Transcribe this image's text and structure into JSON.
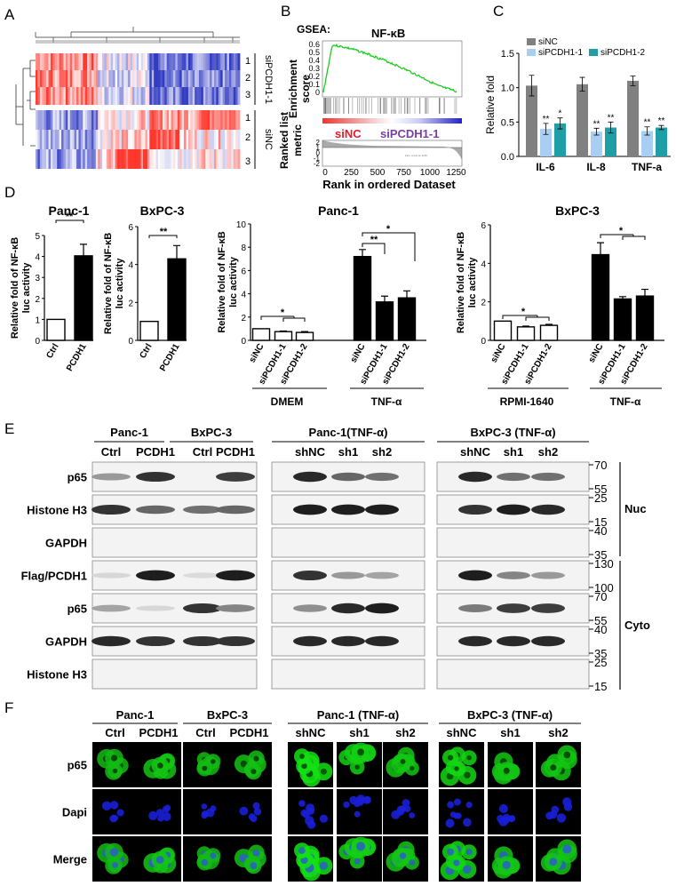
{
  "panels": {
    "A": "A",
    "B": "B",
    "C": "C",
    "D": "D",
    "E": "E",
    "F": "F"
  },
  "panelA": {
    "group_labels": [
      "siPCDH1-1",
      "siNC"
    ],
    "row_labels": [
      "1",
      "2",
      "3",
      "1",
      "2",
      "3"
    ]
  },
  "panelB": {
    "prefix": "GSEA:",
    "title": "NF-κB",
    "es_label_1": "Enrichment",
    "es_label_2": "score",
    "rl_label_1": "Ranked list",
    "rl_label_2": "metric",
    "xlabel": "Rank in ordered Dataset",
    "es_ticks": [
      "0.6",
      "0.5",
      "0.4",
      "0.3",
      "0.2",
      "0.1",
      "0"
    ],
    "rl_ticks": [
      "2",
      "1",
      "0",
      "-1",
      "-2"
    ],
    "x_ticks": [
      "0",
      "250",
      "500",
      "750",
      "1000",
      "1250"
    ],
    "bar_left": "siNC",
    "bar_right": "siPCDH1-1",
    "zero_note": "Zero cross at 1139"
  },
  "chart_data": [
    {
      "id": "C",
      "type": "bar",
      "title": "",
      "xlabel": "",
      "ylabel": "Relative fold",
      "ylim": [
        0,
        1.5
      ],
      "yticks": [
        "0.0",
        "0.5",
        "1.0",
        "1.5"
      ],
      "categories": [
        "IL-6",
        "IL-8",
        "TNF-a"
      ],
      "series": [
        {
          "name": "siNC",
          "values": [
            1.03,
            1.05,
            1.1
          ],
          "err": [
            0.15,
            0.1,
            0.07
          ],
          "color": "#808080"
        },
        {
          "name": "siPCDH1-1",
          "values": [
            0.4,
            0.36,
            0.37
          ],
          "err": [
            0.08,
            0.05,
            0.06
          ],
          "color": "#a8cff2"
        },
        {
          "name": "siPCDH1-2",
          "values": [
            0.48,
            0.42,
            0.42
          ],
          "err": [
            0.08,
            0.08,
            0.03
          ],
          "color": "#1f9ea6"
        }
      ],
      "sig": [
        [
          "",
          "**",
          "*"
        ],
        [
          "",
          "**",
          "**"
        ],
        [
          "",
          "**",
          "**"
        ]
      ]
    },
    {
      "id": "D1",
      "type": "bar",
      "title": "Panc-1",
      "ylabel": "Relative fold of NF-κB luc activity",
      "ylim": [
        0,
        5
      ],
      "yticks": [
        "0",
        "1",
        "2",
        "3",
        "4",
        "5"
      ],
      "categories": [
        "Ctrl",
        "PCDH1"
      ],
      "values": [
        1.0,
        4.03
      ],
      "err": [
        0,
        0.55
      ],
      "fills": [
        "#fff",
        "#000"
      ],
      "sig": "**"
    },
    {
      "id": "D2",
      "type": "bar",
      "title": "BxPC-3",
      "ylabel": "Relative fold of NF-κB luc activity",
      "ylim": [
        0,
        6
      ],
      "yticks": [
        "0",
        "2",
        "4",
        "6"
      ],
      "categories": [
        "Ctrl",
        "PCDH1"
      ],
      "values": [
        1.0,
        4.3
      ],
      "err": [
        0,
        0.7
      ],
      "fills": [
        "#fff",
        "#000"
      ],
      "sig": "**"
    },
    {
      "id": "D3",
      "type": "bar",
      "title": "Panc-1",
      "ylabel": "Relative fold of NF-κB luc activity",
      "ylim": [
        0,
        10
      ],
      "yticks": [
        "0",
        "2",
        "4",
        "6",
        "8",
        "10"
      ],
      "categories": [
        "siNC",
        "siPCDH1-1",
        "siPCDH1-2",
        "siNC",
        "siPCDH1-1",
        "siPCDH1-2"
      ],
      "values": [
        1.0,
        0.75,
        0.68,
        7.2,
        3.3,
        3.65
      ],
      "err": [
        0,
        0.05,
        0.08,
        0.6,
        0.5,
        0.6
      ],
      "fills": [
        "#fff",
        "#fff",
        "#fff",
        "#000",
        "#000",
        "#000"
      ],
      "groups": [
        "DMEM",
        "TNF-α"
      ],
      "sig": [
        "*",
        "**",
        "*"
      ]
    },
    {
      "id": "D4",
      "type": "bar",
      "title": "BxPC-3",
      "ylabel": "Relative fold of NF-κB luc activity",
      "ylim": [
        0,
        6
      ],
      "yticks": [
        "0",
        "2",
        "4",
        "6"
      ],
      "categories": [
        "siNC",
        "siPCDH1-1",
        "siPCDH1-2",
        "siNC",
        "siPCDH1-1",
        "siPCDH1-2"
      ],
      "values": [
        1.0,
        0.7,
        0.78,
        4.45,
        2.15,
        2.3
      ],
      "err": [
        0,
        0.04,
        0.05,
        0.62,
        0.12,
        0.35
      ],
      "fills": [
        "#fff",
        "#fff",
        "#fff",
        "#000",
        "#000",
        "#000"
      ],
      "groups": [
        "RPMI-1640",
        "TNF-α"
      ],
      "sig": [
        "*",
        "*"
      ]
    }
  ],
  "panelE": {
    "headers": [
      "Panc-1",
      "BxPC-3",
      "Panc-1(TNF-α)",
      "BxPC-3 (TNF-α)"
    ],
    "lanes_left": [
      "Ctrl",
      "PCDH1",
      "Ctrl",
      "PCDH1"
    ],
    "lanes_mid": [
      "shNC",
      "sh1",
      "sh2"
    ],
    "lanes_right": [
      "shNC",
      "sh1",
      "sh2"
    ],
    "rows": [
      "p65",
      "Histone H3",
      "GAPDH",
      "Flag/PCDH1",
      "p65",
      "GAPDH",
      "Histone H3"
    ],
    "mw": [
      [
        "70",
        "55"
      ],
      [
        "25",
        "15"
      ],
      [
        "40",
        "35"
      ],
      [
        "130",
        "100"
      ],
      [
        "70",
        "55"
      ],
      [
        "40",
        "35"
      ],
      [
        "25",
        "15"
      ]
    ],
    "fractions": [
      "Nuc",
      "Cyto"
    ]
  },
  "panelF": {
    "headers": [
      "Panc-1",
      "BxPC-3",
      "Panc-1 (TNF-α)",
      "BxPC-3 (TNF-α)"
    ],
    "columns": [
      "Ctrl",
      "PCDH1",
      "Ctrl",
      "PCDH1",
      "shNC",
      "sh1",
      "sh2",
      "shNC",
      "sh1",
      "sh2"
    ],
    "rows": [
      "p65",
      "Dapi",
      "Merge"
    ]
  }
}
